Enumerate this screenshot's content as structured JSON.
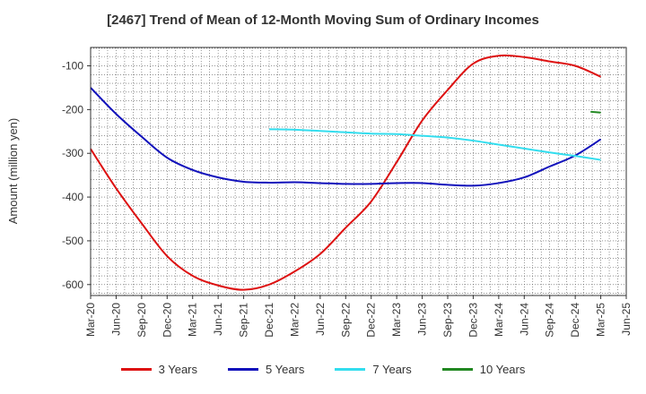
{
  "chart_data": {
    "type": "line",
    "title": "[2467]  Trend of Mean of 12-Month Moving Sum of Ordinary Incomes",
    "xlabel": "",
    "ylabel": "Amount (million yen)",
    "ylim": [
      -625,
      -58
    ],
    "yticks": [
      -100,
      -200,
      -300,
      -400,
      -500,
      -600
    ],
    "ytick_labels": [
      "-100",
      "-200",
      "-300",
      "-400",
      "-500",
      "-600"
    ],
    "grid": true,
    "legend_position": "bottom",
    "x_labels": [
      "Mar-20",
      "Jun-20",
      "Sep-20",
      "Dec-20",
      "Mar-21",
      "Jun-21",
      "Sep-21",
      "Dec-21",
      "Mar-22",
      "Jun-22",
      "Sep-22",
      "Dec-22",
      "Mar-23",
      "Jun-23",
      "Sep-23",
      "Dec-23",
      "Mar-24",
      "Jun-24",
      "Sep-24",
      "Dec-24",
      "Mar-25",
      "Jun-25"
    ],
    "series": [
      {
        "name": "3 Years",
        "color": "#dd1111",
        "values": [
          -290,
          -380,
          -460,
          -535,
          -580,
          -602,
          -612,
          -600,
          -570,
          -530,
          -470,
          -410,
          -320,
          -225,
          -155,
          -95,
          -77,
          -80,
          -90,
          -100,
          -125,
          null
        ]
      },
      {
        "name": "5 Years",
        "color": "#1111bb",
        "values": [
          -150,
          -210,
          -262,
          -310,
          -338,
          -355,
          -365,
          -367,
          -366,
          -368,
          -370,
          -370,
          -368,
          -368,
          -372,
          -374,
          -368,
          -355,
          -330,
          -305,
          -268,
          null
        ]
      },
      {
        "name": "7 Years",
        "color": "#33ddee",
        "values": [
          null,
          null,
          null,
          null,
          null,
          null,
          null,
          -245,
          -246,
          -249,
          -252,
          -255,
          -256,
          -260,
          -264,
          -271,
          -280,
          -289,
          -298,
          -306,
          -315,
          null
        ]
      },
      {
        "name": "10 Years",
        "color": "#228822",
        "values": [
          null,
          null,
          null,
          null,
          null,
          null,
          null,
          null,
          null,
          null,
          null,
          null,
          null,
          null,
          null,
          null,
          null,
          null,
          null,
          null,
          -207,
          null
        ],
        "partial_start": {
          "x_index": 19.6,
          "value": -205
        }
      }
    ]
  }
}
